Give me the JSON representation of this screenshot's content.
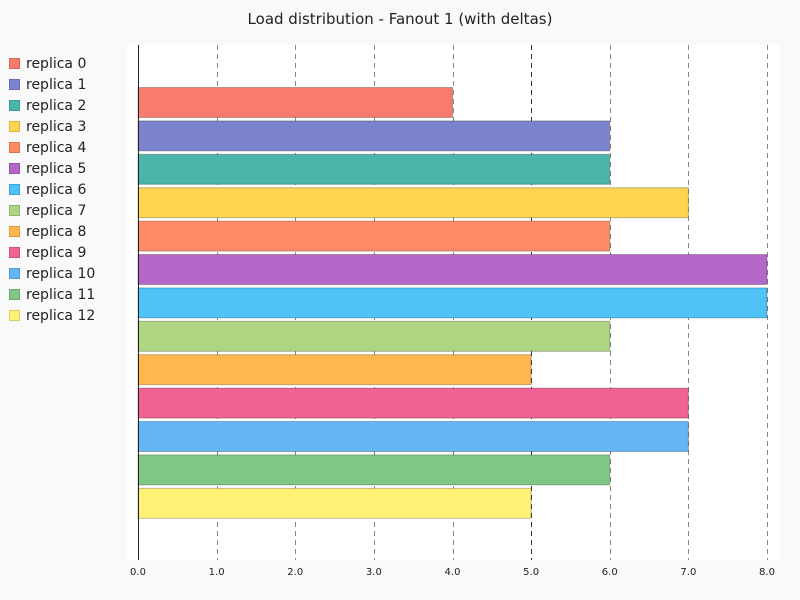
{
  "chart_data": {
    "type": "bar",
    "orientation": "horizontal",
    "title": "Load distribution - Fanout 1 (with deltas)",
    "xlabel": "",
    "ylabel": "",
    "xlim": [
      0,
      8.2
    ],
    "x_ticks": [
      "0.0",
      "1.0",
      "2.0",
      "3.0",
      "4.0",
      "5.0",
      "6.0",
      "7.0",
      "8.0"
    ],
    "x_tick_values": [
      0,
      1,
      2,
      3,
      4,
      5,
      6,
      7,
      8
    ],
    "grid": "vertical dashed",
    "highlight_line": 5,
    "legend_position": "left",
    "categories": [
      "replica 0",
      "replica 1",
      "replica 2",
      "replica 3",
      "replica 4",
      "replica 5",
      "replica 6",
      "replica 7",
      "replica 8",
      "replica 9",
      "replica 10",
      "replica 11",
      "replica 12"
    ],
    "values": [
      4,
      6,
      6,
      7,
      6,
      8,
      8,
      6,
      5,
      7,
      7,
      6,
      5
    ],
    "colors": [
      "#f87c6e",
      "#7b83cc",
      "#4bb5a9",
      "#ffd54f",
      "#ff8a65",
      "#b567c7",
      "#4fc3f7",
      "#aed581",
      "#ffb74d",
      "#f06292",
      "#64b5f6",
      "#81c784",
      "#fff176"
    ]
  }
}
